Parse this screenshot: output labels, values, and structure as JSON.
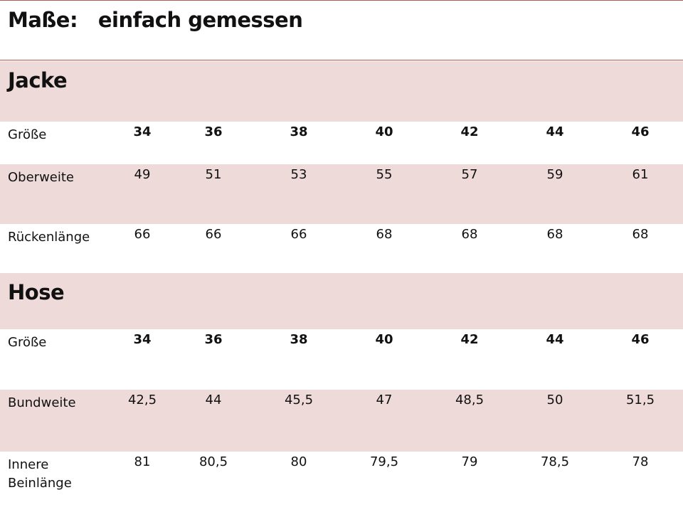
{
  "title": "Maße:   einfach gemessen",
  "sizes": [
    "34",
    "36",
    "38",
    "40",
    "42",
    "44",
    "46"
  ],
  "colors": {
    "accent_line": "#b5585a",
    "band": "#efdada"
  },
  "jacke": {
    "heading": "Jacke",
    "rows": [
      {
        "label": "Größe",
        "values": [
          "34",
          "36",
          "38",
          "40",
          "42",
          "44",
          "46"
        ]
      },
      {
        "label": "Oberweite",
        "values": [
          "49",
          "51",
          "53",
          "55",
          "57",
          "59",
          "61"
        ]
      },
      {
        "label": "Rückenlänge",
        "values": [
          "66",
          "66",
          "66",
          "68",
          "68",
          "68",
          "68"
        ]
      }
    ]
  },
  "hose": {
    "heading": "Hose",
    "rows": [
      {
        "label": "Größe",
        "values": [
          "34",
          "36",
          "38",
          "40",
          "42",
          "44",
          "46"
        ]
      },
      {
        "label": "Bundweite",
        "values": [
          "42,5",
          "44",
          "45,5",
          "47",
          "48,5",
          "50",
          "51,5"
        ]
      },
      {
        "label": "Innere Beinlänge",
        "values": [
          "81",
          "80,5",
          "80",
          "79,5",
          "79",
          "78,5",
          "78"
        ]
      }
    ]
  }
}
